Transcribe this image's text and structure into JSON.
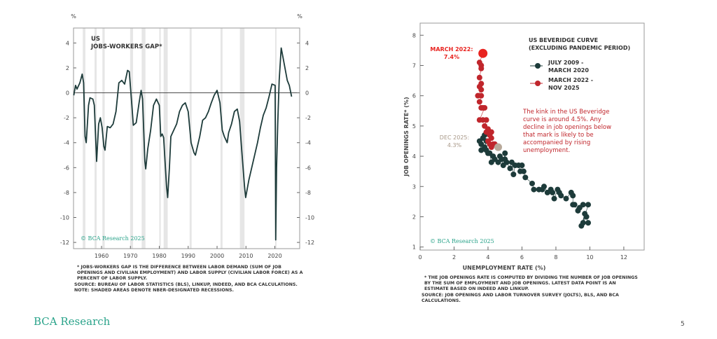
{
  "colors": {
    "line": "#1d3b3a",
    "recession": "#e6e6e6",
    "red": "#c0262c",
    "bright_red": "#e8231f",
    "gray": "#b8a99a",
    "teal": "#2aa38a"
  },
  "chart_data": [
    {
      "type": "line",
      "title_lines": [
        "US",
        "JOBS-WORKERS GAP*"
      ],
      "ylabel_left": "%",
      "ylabel_right": "%",
      "ylim": [
        -12.5,
        5.2
      ],
      "xlim": [
        1950.3,
        2028.6
      ],
      "yticks": [
        4,
        2,
        0,
        -2,
        -4,
        -6,
        -8,
        -10,
        -12
      ],
      "xticks": [
        1960,
        1970,
        1980,
        1990,
        2000,
        2010,
        2020
      ],
      "watermark": "© BCA Research 2025",
      "recessions": [
        [
          1953.5,
          54.4
        ],
        [
          1957.6,
          58.3
        ],
        [
          1960.3,
          61.1
        ],
        [
          1969.9,
          70.9
        ],
        [
          1973.9,
          75.2
        ],
        [
          1980.0,
          80.5
        ],
        [
          1981.5,
          82.9
        ],
        [
          1990.5,
          91.2
        ],
        [
          2001.2,
          2001.9
        ],
        [
          2007.9,
          2009.5
        ],
        [
          2020.1,
          2020.4
        ]
      ],
      "series": [
        [
          1950.4,
          -0.2
        ],
        [
          1951,
          0.6
        ],
        [
          1951.5,
          0.3
        ],
        [
          1952.5,
          0.8
        ],
        [
          1953.3,
          1.5
        ],
        [
          1953.8,
          0.8
        ],
        [
          1954.3,
          -3.5
        ],
        [
          1954.7,
          -4
        ],
        [
          1955.5,
          -1
        ],
        [
          1956,
          -0.4
        ],
        [
          1957,
          -0.5
        ],
        [
          1957.5,
          -1
        ],
        [
          1958.3,
          -5.5
        ],
        [
          1959,
          -2.5
        ],
        [
          1959.6,
          -2
        ],
        [
          1960.2,
          -2.8
        ],
        [
          1960.8,
          -4.3
        ],
        [
          1961.2,
          -4.6
        ],
        [
          1962,
          -2.7
        ],
        [
          1963,
          -2.8
        ],
        [
          1964,
          -2.5
        ],
        [
          1965,
          -1.5
        ],
        [
          1966,
          0.8
        ],
        [
          1967,
          1.0
        ],
        [
          1968,
          0.7
        ],
        [
          1969,
          1.8
        ],
        [
          1969.6,
          1.7
        ],
        [
          1970.5,
          -1
        ],
        [
          1971,
          -2.6
        ],
        [
          1972,
          -2.4
        ],
        [
          1973,
          -0.8
        ],
        [
          1973.7,
          0.2
        ],
        [
          1974.2,
          -0.5
        ],
        [
          1975,
          -5.5
        ],
        [
          1975.3,
          -6.1
        ],
        [
          1976,
          -4.5
        ],
        [
          1977,
          -3
        ],
        [
          1978,
          -1
        ],
        [
          1979,
          -0.5
        ],
        [
          1980,
          -1
        ],
        [
          1980.5,
          -3.5
        ],
        [
          1981,
          -3.3
        ],
        [
          1981.5,
          -3.6
        ],
        [
          1982.5,
          -7.5
        ],
        [
          1982.9,
          -8.4
        ],
        [
          1983.5,
          -6
        ],
        [
          1984,
          -3.5
        ],
        [
          1985,
          -3
        ],
        [
          1986,
          -2.5
        ],
        [
          1987,
          -1.5
        ],
        [
          1988,
          -1
        ],
        [
          1989,
          -0.8
        ],
        [
          1990,
          -1.5
        ],
        [
          1991,
          -4
        ],
        [
          1992,
          -4.8
        ],
        [
          1992.5,
          -5
        ],
        [
          1993,
          -4.5
        ],
        [
          1994,
          -3.5
        ],
        [
          1995,
          -2.2
        ],
        [
          1996,
          -2
        ],
        [
          1997,
          -1.5
        ],
        [
          1998,
          -0.8
        ],
        [
          1999,
          -0.2
        ],
        [
          2000,
          0.2
        ],
        [
          2001,
          -0.8
        ],
        [
          2001.8,
          -3
        ],
        [
          2002.5,
          -3.5
        ],
        [
          2003.5,
          -4
        ],
        [
          2004,
          -3.2
        ],
        [
          2005,
          -2.5
        ],
        [
          2006,
          -1.5
        ],
        [
          2007,
          -1.3
        ],
        [
          2007.8,
          -2.3
        ],
        [
          2008.5,
          -4.5
        ],
        [
          2009.5,
          -7.5
        ],
        [
          2009.9,
          -8.4
        ],
        [
          2011,
          -7
        ],
        [
          2012,
          -6
        ],
        [
          2013,
          -5
        ],
        [
          2014,
          -4
        ],
        [
          2015,
          -2.8
        ],
        [
          2016,
          -1.8
        ],
        [
          2017,
          -1.2
        ],
        [
          2018,
          -0.3
        ],
        [
          2019,
          0.7
        ],
        [
          2020.1,
          0.6
        ],
        [
          2020.3,
          -11.8
        ],
        [
          2020.6,
          -6
        ],
        [
          2021,
          -2.5
        ],
        [
          2021.5,
          1
        ],
        [
          2022.2,
          3.6
        ],
        [
          2022.7,
          3.0
        ],
        [
          2023.5,
          2
        ],
        [
          2024.3,
          1
        ],
        [
          2025,
          0.6
        ],
        [
          2025.8,
          -0.3
        ]
      ],
      "notes": [
        "* JOBS-WORKERS GAP IS THE DIFFERENCE BETWEEN LABOR DEMAND (SUM OF JOB OPENINGS AND CIVILIAN EMPLOYMENT) AND LABOR SUPPLY (CIVILIAN LABOR FORCE) AS A PERCENT OF LABOR SUPPLY.",
        "SOURCE: BUREAU OF LABOR STATISTICS (BLS), LINKUP, INDEED, AND BCA CALCULATIONS.",
        "NOTE: SHADED AREAS DENOTE NBER-DESIGNATED RECESSIONS."
      ]
    },
    {
      "type": "scatter",
      "title_lines": [
        "US BEVERIDGE CURVE",
        "(EXCLUDING PANDEMIC PERIOD)"
      ],
      "xlabel": "UNEMPLOYMENT RATE (%)",
      "ylabel": "JOB OPENINGS RATE* (%)",
      "xlim": [
        0,
        13.2
      ],
      "ylim": [
        0.9,
        8.4
      ],
      "xticks": [
        0,
        2,
        4,
        6,
        8,
        10,
        12
      ],
      "yticks": [
        1,
        2,
        3,
        4,
        5,
        6,
        7,
        8
      ],
      "watermark": "© BCA Research 2025",
      "legend": [
        {
          "label_lines": [
            "JULY 2009 -",
            "MARCH 2020"
          ],
          "color": "#1d3b3a"
        },
        {
          "label_lines": [
            "MARCH 2022 -",
            "NOV 2025"
          ],
          "color": "#c0262c"
        }
      ],
      "legend_position": "top-right",
      "annotations": {
        "march2022": [
          "MARCH 2022:",
          "7.4%"
        ],
        "dec2025": [
          "DEC 2025:",
          "4.3%"
        ],
        "kink": [
          "The kink in the US Beveridge",
          "curve is around 4.5%. Any",
          "decline in job openings below",
          "that mark is likely to be",
          "accompanied by rising",
          "unemployment."
        ]
      },
      "series": [
        {
          "name": "JULY 2009 - MARCH 2020",
          "points": [
            [
              9.9,
              1.8
            ],
            [
              9.8,
              2.0
            ],
            [
              9.5,
              1.7
            ],
            [
              9.7,
              2.1
            ],
            [
              9.6,
              1.8
            ],
            [
              9.9,
              2.4
            ],
            [
              9.6,
              2.4
            ],
            [
              9.4,
              2.3
            ],
            [
              9.3,
              2.2
            ],
            [
              9.1,
              2.4
            ],
            [
              9.0,
              2.4
            ],
            [
              9.0,
              2.7
            ],
            [
              8.9,
              2.8
            ],
            [
              8.6,
              2.6
            ],
            [
              8.3,
              2.7
            ],
            [
              8.2,
              2.8
            ],
            [
              8.1,
              2.9
            ],
            [
              7.9,
              2.6
            ],
            [
              7.8,
              2.8
            ],
            [
              7.7,
              2.9
            ],
            [
              7.5,
              2.8
            ],
            [
              7.3,
              3.0
            ],
            [
              7.2,
              2.9
            ],
            [
              7.0,
              2.9
            ],
            [
              6.7,
              2.9
            ],
            [
              6.6,
              3.1
            ],
            [
              6.2,
              3.3
            ],
            [
              6.1,
              3.5
            ],
            [
              6.0,
              3.7
            ],
            [
              5.9,
              3.5
            ],
            [
              5.8,
              3.7
            ],
            [
              5.6,
              3.7
            ],
            [
              5.5,
              3.4
            ],
            [
              5.4,
              3.8
            ],
            [
              5.3,
              3.6
            ],
            [
              5.1,
              3.8
            ],
            [
              5.0,
              3.9
            ],
            [
              5.0,
              4.1
            ],
            [
              4.9,
              3.7
            ],
            [
              4.8,
              3.9
            ],
            [
              4.7,
              4.0
            ],
            [
              4.6,
              3.8
            ],
            [
              4.4,
              3.9
            ],
            [
              4.3,
              4.0
            ],
            [
              4.2,
              3.8
            ],
            [
              4.1,
              4.1
            ],
            [
              4.0,
              4.1
            ],
            [
              3.9,
              4.2
            ],
            [
              3.8,
              4.3
            ],
            [
              3.9,
              4.5
            ],
            [
              3.8,
              4.7
            ],
            [
              3.7,
              4.6
            ],
            [
              3.6,
              4.4
            ],
            [
              3.6,
              4.2
            ],
            [
              3.5,
              4.5
            ]
          ]
        },
        {
          "name": "MARCH 2022 - NOV 2025",
          "points": [
            [
              3.7,
              7.4
            ],
            [
              3.5,
              7.1
            ],
            [
              3.6,
              7.0
            ],
            [
              3.6,
              6.9
            ],
            [
              3.5,
              6.6
            ],
            [
              3.6,
              6.4
            ],
            [
              3.5,
              6.3
            ],
            [
              3.6,
              6.2
            ],
            [
              3.4,
              6.0
            ],
            [
              3.6,
              6.0
            ],
            [
              3.5,
              5.8
            ],
            [
              3.6,
              5.6
            ],
            [
              3.7,
              5.6
            ],
            [
              3.8,
              5.6
            ],
            [
              3.5,
              5.2
            ],
            [
              3.7,
              5.2
            ],
            [
              3.9,
              5.2
            ],
            [
              3.8,
              5.0
            ],
            [
              3.9,
              4.8
            ],
            [
              4.0,
              4.9
            ],
            [
              4.2,
              4.8
            ],
            [
              4.1,
              4.7
            ],
            [
              4.2,
              4.6
            ],
            [
              4.0,
              4.5
            ],
            [
              4.1,
              4.4
            ],
            [
              4.3,
              4.4
            ],
            [
              4.4,
              4.4
            ],
            [
              4.2,
              4.3
            ]
          ]
        },
        {
          "name": "DEC 2025",
          "points": [
            [
              4.6,
              4.3
            ]
          ]
        }
      ],
      "notes": [
        "* THE JOB OPENINGS RATE IS COMPUTED BY DIVIDING THE NUMBER OF JOB OPENINGS BY THE SUM OF EMPLOYMENT AND JOB OPENINGS. LATEST DATA POINT IS AN ESTIMATE BASED ON INDEED AND LINKUP.",
        "SOURCE: JOB OPENINGS AND LABOR TURNOVER SURVEY (JOLTS), BLS, AND BCA CALCULATIONS."
      ]
    }
  ],
  "footer": {
    "logo": "BCA Research",
    "page": "5"
  }
}
